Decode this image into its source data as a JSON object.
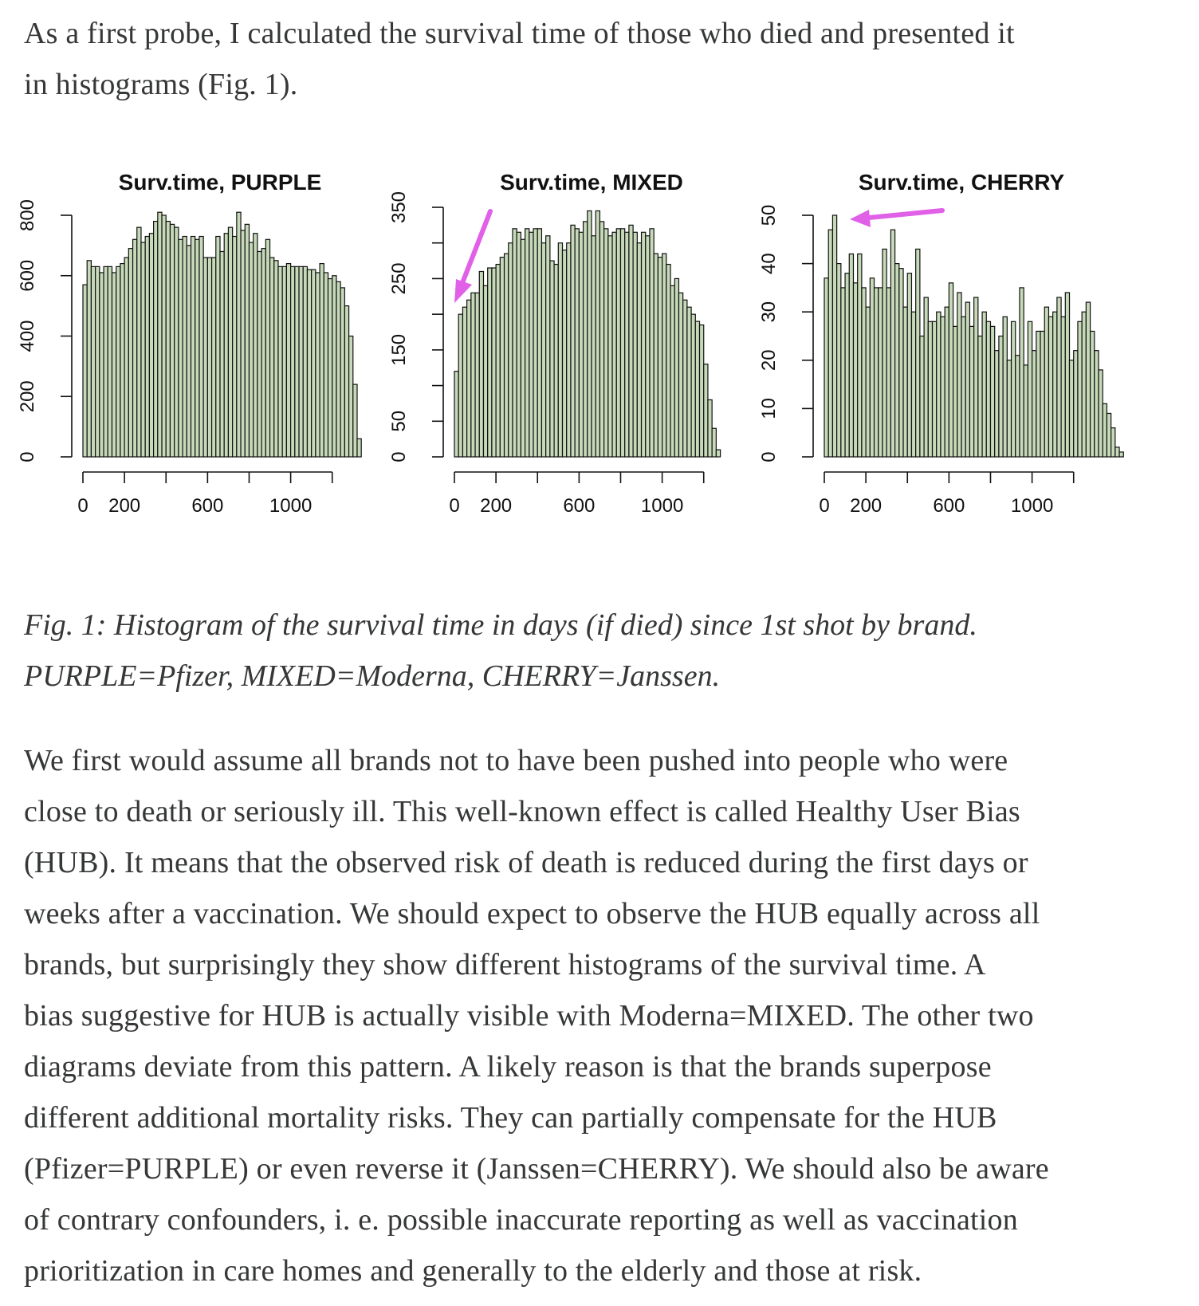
{
  "intro": {
    "lines": [
      "As a first probe, I calculated the survival time of those who died and presented it",
      "in histograms (Fig. 1)."
    ]
  },
  "figure": {
    "arrow_color": "#e060e8",
    "bar_fill": "#c6d9b8",
    "bar_stroke": "#111111"
  },
  "chart_data": [
    {
      "type": "bar",
      "title": "Surv.time, PURPLE",
      "xlabel": "",
      "ylabel": "",
      "x_ticks": [
        0,
        200,
        400,
        600,
        800,
        1000,
        1200
      ],
      "x_tick_labels": [
        "0",
        "200",
        "600",
        "1000"
      ],
      "y_ticks": [
        0,
        200,
        400,
        600,
        800
      ],
      "y_tick_labels": [
        "0",
        "200",
        "400",
        "600",
        "800"
      ],
      "ylim": [
        0,
        800
      ],
      "xlim": [
        0,
        1320
      ],
      "bin_width": 20,
      "values": [
        570,
        650,
        630,
        630,
        610,
        630,
        630,
        610,
        630,
        640,
        660,
        690,
        720,
        760,
        710,
        730,
        740,
        780,
        810,
        800,
        780,
        770,
        760,
        720,
        730,
        700,
        730,
        720,
        730,
        660,
        660,
        660,
        730,
        680,
        740,
        760,
        730,
        810,
        750,
        770,
        710,
        740,
        680,
        690,
        720,
        660,
        650,
        630,
        630,
        640,
        630,
        630,
        630,
        630,
        620,
        620,
        610,
        640,
        610,
        590,
        600,
        580,
        560,
        500,
        400,
        240,
        60
      ],
      "grid": false,
      "annotation": "none"
    },
    {
      "type": "bar",
      "title": "Surv.time, MIXED",
      "xlabel": "",
      "ylabel": "",
      "x_ticks": [
        0,
        200,
        400,
        600,
        800,
        1000,
        1200
      ],
      "x_tick_labels": [
        "0",
        "200",
        "600",
        "1000"
      ],
      "y_ticks": [
        0,
        50,
        100,
        150,
        200,
        250,
        300,
        350
      ],
      "y_tick_labels": [
        "0",
        "50",
        "150",
        "250",
        "350"
      ],
      "ylim": [
        0,
        350
      ],
      "xlim": [
        0,
        1320
      ],
      "bin_width": 20,
      "values": [
        120,
        200,
        210,
        220,
        230,
        230,
        260,
        240,
        265,
        265,
        270,
        280,
        285,
        300,
        320,
        315,
        305,
        320,
        315,
        320,
        320,
        300,
        310,
        275,
        270,
        300,
        290,
        300,
        325,
        320,
        315,
        330,
        345,
        310,
        345,
        330,
        320,
        310,
        315,
        320,
        320,
        315,
        325,
        315,
        300,
        315,
        310,
        320,
        285,
        280,
        285,
        270,
        240,
        250,
        230,
        220,
        210,
        200,
        190,
        185,
        130,
        80,
        40,
        10
      ],
      "grid": false,
      "annotation": "arrow pointing to low early bins"
    },
    {
      "type": "bar",
      "title": "Surv.time, CHERRY",
      "xlabel": "",
      "ylabel": "",
      "x_ticks": [
        0,
        200,
        400,
        600,
        800,
        1000,
        1200
      ],
      "x_tick_labels": [
        "0",
        "200",
        "600",
        "1000"
      ],
      "y_ticks": [
        0,
        10,
        20,
        30,
        40,
        50
      ],
      "y_tick_labels": [
        "0",
        "10",
        "20",
        "30",
        "40",
        "50"
      ],
      "ylim": [
        0,
        50
      ],
      "xlim": [
        0,
        1320
      ],
      "bin_width": 20,
      "values": [
        37,
        47,
        50,
        40,
        35,
        38,
        42,
        36,
        42,
        35,
        31,
        37,
        35,
        35,
        43,
        35,
        47,
        40,
        39,
        31,
        38,
        30,
        43,
        25,
        33,
        28,
        28,
        30,
        29,
        31,
        36,
        27,
        34,
        29,
        32,
        27,
        33,
        25,
        30,
        28,
        27,
        22,
        25,
        29,
        20,
        28,
        21,
        35,
        19,
        28,
        22,
        26,
        26,
        31,
        29,
        30,
        33,
        29,
        34,
        20,
        22,
        28,
        30,
        32,
        26,
        22,
        18,
        11,
        9,
        6,
        2,
        1
      ],
      "grid": false,
      "annotation": "arrow pointing to early peak"
    }
  ],
  "caption": {
    "lines": [
      "Fig. 1: Histogram of the survival time in days (if died) since 1st shot by brand.",
      "PURPLE=Pfizer, MIXED=Moderna, CHERRY=Janssen."
    ]
  },
  "body": {
    "lines": [
      "We first would assume all brands not to have been pushed into people who were",
      "close to death or seriously ill. This well-known effect is called Healthy User Bias",
      "(HUB). It means that the observed risk of death is reduced during the first days or",
      "weeks after a vaccination. We should expect to observe the HUB equally across all",
      "brands, but surprisingly they show different histograms of the survival time. A",
      "bias suggestive for HUB is actually visible with Moderna=MIXED. The other two",
      "diagrams deviate from this pattern. A likely reason is that the brands superpose",
      "different additional mortality risks. They can partially compensate for the HUB",
      "(Pfizer=PURPLE) or even reverse it (Janssen=CHERRY). We should also be aware",
      "of contrary confounders, i. e. possible inaccurate reporting as well as vaccination",
      "prioritization in care homes and generally to the elderly and those at risk."
    ]
  }
}
